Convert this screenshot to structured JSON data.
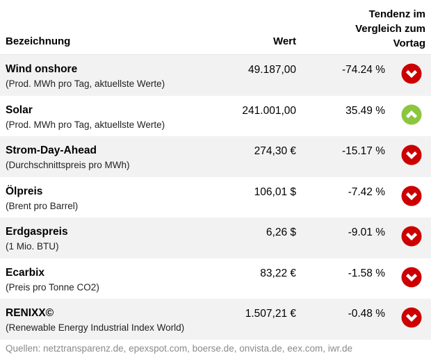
{
  "header": {
    "name": "Bezeichnung",
    "value": "Wert",
    "trend_lines": [
      "Tendenz im",
      "Vergleich zum",
      "Vortag"
    ]
  },
  "rows": [
    {
      "name": "Wind onshore",
      "sub": "(Prod. MWh pro Tag, aktuellste Werte)",
      "value": "49.187,00",
      "change": "-74.24 %",
      "trend": "down"
    },
    {
      "name": "Solar",
      "sub": "(Prod. MWh pro Tag, aktuellste Werte)",
      "value": "241.001,00",
      "change": "35.49 %",
      "trend": "up"
    },
    {
      "name": "Strom-Day-Ahead",
      "sub": "(Durchschnittspreis pro MWh)",
      "value": "274,30 €",
      "change": "-15.17 %",
      "trend": "down"
    },
    {
      "name": "Ölpreis",
      "sub": "(Brent pro Barrel)",
      "value": "106,01 $",
      "change": "-7.42 %",
      "trend": "down"
    },
    {
      "name": "Erdgaspreis",
      "sub": "(1 Mio. BTU)",
      "value": "6,26 $",
      "change": "-9.01 %",
      "trend": "down"
    },
    {
      "name": "Ecarbix",
      "sub": "(Preis pro Tonne CO2)",
      "value": "83,22 €",
      "change": "-1.58 %",
      "trend": "down"
    },
    {
      "name": "RENIXX©",
      "sub": "(Renewable Energy Industrial Index World)",
      "value": "1.507,21 €",
      "change": "-0.48 %",
      "trend": "down"
    }
  ],
  "icons": {
    "down": {
      "name": "arrow-down-circle-icon",
      "color": "#cc0000"
    },
    "up": {
      "name": "arrow-up-circle-icon",
      "color": "#8cc63f"
    }
  },
  "footer": "Quellen: netztransparenz.de, epexspot.com, boerse.de, onvista.de, eex.com, iwr.de"
}
